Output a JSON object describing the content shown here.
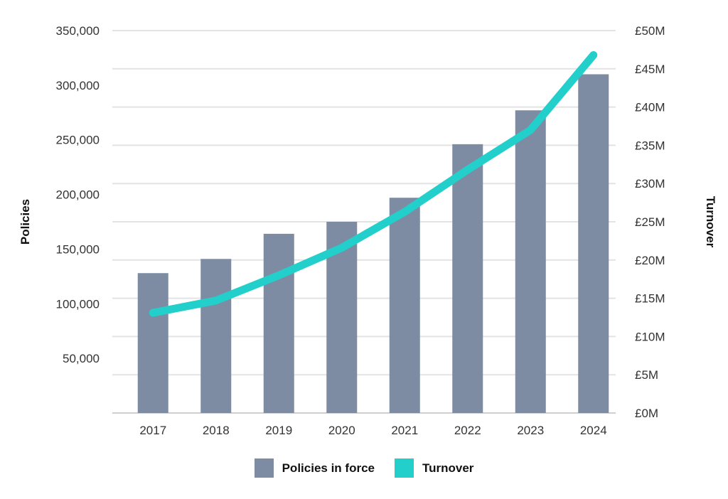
{
  "chart_data": {
    "type": "bar",
    "categories": [
      "2017",
      "2018",
      "2019",
      "2020",
      "2021",
      "2022",
      "2023",
      "2024"
    ],
    "series": [
      {
        "name": "Policies in force",
        "type": "bar",
        "axis": "left",
        "color": "#7d8ba3",
        "values": [
          128000,
          141000,
          164000,
          175000,
          197000,
          246000,
          277000,
          310000
        ]
      },
      {
        "name": "Turnover",
        "type": "line",
        "axis": "right",
        "color": "#22cfcb",
        "values": [
          13.1,
          14.7,
          18.0,
          21.6,
          26.3,
          31.8,
          37.0,
          46.8
        ]
      }
    ],
    "y_left": {
      "label": "Policies",
      "ylim": [
        0,
        350000
      ],
      "ticks": [
        50000,
        100000,
        150000,
        200000,
        250000,
        300000,
        350000
      ],
      "tick_labels": [
        "50,000",
        "100,000",
        "150,000",
        "200,000",
        "250,000",
        "300,000",
        "350,000"
      ]
    },
    "y_right": {
      "label": "Turnover",
      "ylim": [
        0,
        50
      ],
      "ticks": [
        0,
        5,
        10,
        15,
        20,
        25,
        30,
        35,
        40,
        45,
        50
      ],
      "tick_labels": [
        "£0M",
        "£5M",
        "£10M",
        "£15M",
        "£20M",
        "£25M",
        "£30M",
        "£35M",
        "£40M",
        "£45M",
        "£50M"
      ]
    },
    "grid": true,
    "legend_position": "bottom-center"
  }
}
